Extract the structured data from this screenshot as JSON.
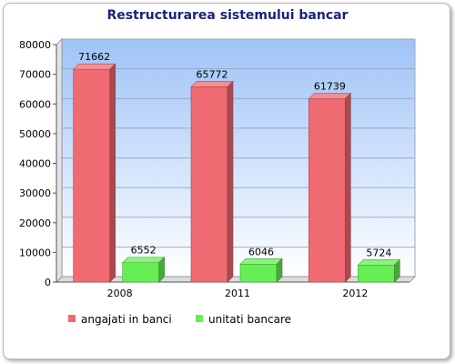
{
  "chart_data": {
    "type": "bar",
    "title": "Restructurarea sistemului bancar",
    "xlabel": "",
    "ylabel": "",
    "categories": [
      "2008",
      "2011",
      "2012"
    ],
    "series": [
      {
        "name": "angajati in banci",
        "values": [
          71662,
          65772,
          61739
        ],
        "color": "#f06a72"
      },
      {
        "name": "unitati bancare",
        "values": [
          6552,
          6046,
          5724
        ],
        "color": "#66ee55"
      }
    ],
    "ylim": [
      0,
      80000
    ],
    "yticks": [
      "0",
      "10000",
      "20000",
      "30000",
      "40000",
      "50000",
      "60000",
      "70000",
      "80000"
    ],
    "data_labels": true,
    "grid": true,
    "legend_position": "bottom-left",
    "style": "3d-bars"
  }
}
